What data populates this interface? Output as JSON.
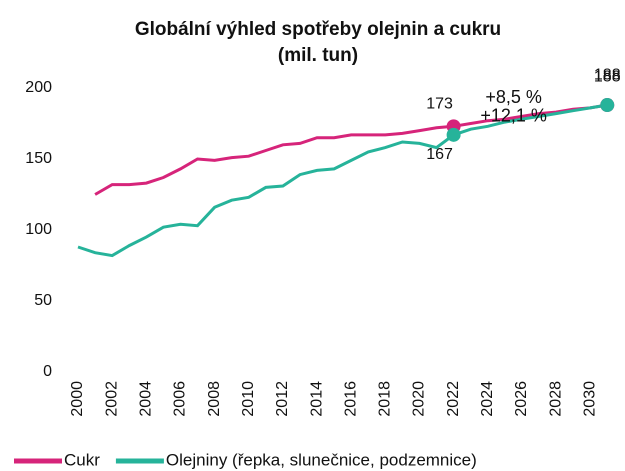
{
  "chart_data": {
    "type": "line",
    "title": "Globální výhled spotřeby olejnin a cukru",
    "subtitle": "(mil. tun)",
    "x": [
      2000,
      2001,
      2002,
      2003,
      2004,
      2005,
      2006,
      2007,
      2008,
      2009,
      2010,
      2011,
      2012,
      2013,
      2014,
      2015,
      2016,
      2017,
      2018,
      2019,
      2020,
      2021,
      2022,
      2023,
      2024,
      2025,
      2026,
      2027,
      2028,
      2029,
      2030,
      2031
    ],
    "series": [
      {
        "name": "Cukr",
        "color": "#d6247a",
        "values": [
          null,
          125,
          132,
          132,
          133,
          137,
          143,
          150,
          149,
          151,
          152,
          156,
          160,
          161,
          165,
          165,
          167,
          167,
          167,
          168,
          170,
          172,
          173,
          175,
          177,
          178,
          180,
          182,
          183,
          185,
          186,
          188
        ]
      },
      {
        "name": "Olejniny (řepka, slunečnice, podzemnice)",
        "color": "#26b39a",
        "values": [
          88,
          84,
          82,
          89,
          95,
          102,
          104,
          103,
          116,
          121,
          123,
          130,
          131,
          139,
          142,
          143,
          149,
          155,
          158,
          162,
          161,
          158,
          167,
          171,
          173,
          176,
          178,
          180,
          182,
          184,
          186,
          188
        ]
      }
    ],
    "annotations": [
      "+8,5 %",
      "+12,1 %"
    ],
    "xlim": [
      1999.6,
      2031.6
    ],
    "xticks": [
      2000,
      2002,
      2004,
      2006,
      2008,
      2010,
      2012,
      2014,
      2016,
      2018,
      2020,
      2022,
      2024,
      2026,
      2028,
      2030
    ],
    "ylim": [
      0,
      200
    ],
    "yticks": [
      0,
      50,
      100,
      150,
      200
    ],
    "grid": false,
    "legend": "bottom"
  }
}
